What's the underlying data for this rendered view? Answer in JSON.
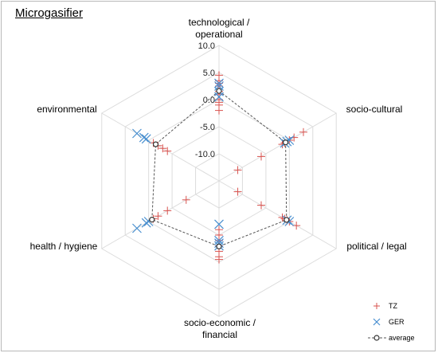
{
  "title": "Microgasifier",
  "chart_data": {
    "type": "radar",
    "title": "Microgasifier",
    "axes": [
      [
        "technological /",
        "operational"
      ],
      [
        "socio-cultural"
      ],
      [
        "political / legal"
      ],
      [
        "socio-economic /",
        "financial"
      ],
      [
        "health / hygiene"
      ],
      [
        "environmental"
      ]
    ],
    "range": [
      -15,
      10
    ],
    "ticks": [
      {
        "value": 10,
        "label": "10.0"
      },
      {
        "value": 5,
        "label": "5.0"
      },
      {
        "value": 0,
        "label": "0.0"
      },
      {
        "value": -5,
        "label": "-5.0"
      },
      {
        "value": -10,
        "label": "-10.0"
      }
    ],
    "series": [
      {
        "name": "TZ",
        "marker": "plus",
        "color": "#d9534f",
        "values": [
          [
            4.5,
            3.5,
            3,
            2.5,
            1.5,
            1,
            0,
            -0.5,
            -1,
            -2
          ],
          [
            3,
            1,
            0,
            -1,
            -1.5,
            -6,
            -11
          ],
          [
            1.5,
            0,
            -0.5,
            -1,
            -1.5,
            -6,
            -11
          ],
          [
            -0.5,
            -1,
            -2,
            -3,
            -4,
            -5,
            -6
          ],
          [
            -1,
            -2,
            -4,
            -8
          ],
          [
            -1,
            -2,
            -3,
            -4
          ]
        ]
      },
      {
        "name": "GER",
        "marker": "x",
        "color": "#4a90d0",
        "values": [
          [
            3,
            2.5,
            1.5,
            0.5
          ],
          [
            0,
            -0.5,
            -1
          ],
          [
            0,
            -0.5
          ],
          [
            -3,
            -3.5,
            -4,
            -7
          ],
          [
            2.5,
            0.5,
            0
          ],
          [
            2.5,
            1,
            0.5
          ]
        ]
      },
      {
        "name": "average",
        "marker": "circle",
        "color": "#333333",
        "values": [
          [
            1.6
          ],
          [
            -0.8
          ],
          [
            -0.6
          ],
          [
            -2.9
          ],
          [
            -0.7
          ],
          [
            -1.5
          ]
        ]
      }
    ]
  }
}
